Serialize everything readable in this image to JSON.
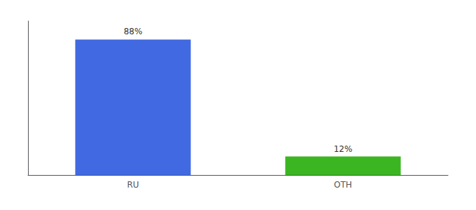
{
  "chart_data": {
    "type": "bar",
    "categories": [
      "RU",
      "OTH"
    ],
    "values": [
      88,
      12
    ],
    "value_labels": [
      "88%",
      "12%"
    ],
    "colors": [
      "#4169e1",
      "#3cb523"
    ],
    "ylim": [
      0,
      100
    ],
    "grid": false,
    "data_labels": true,
    "tick_labels": "x"
  }
}
